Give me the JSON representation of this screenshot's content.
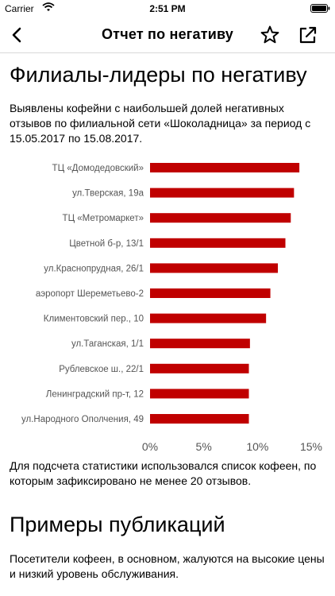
{
  "status_bar": {
    "carrier": "Carrier",
    "time": "2:51 PM"
  },
  "nav": {
    "title": "Отчет по негативу"
  },
  "section1": {
    "heading": "Филиалы-лидеры по негативу",
    "intro": "Выявлены кофейни с наибольшей долей негативных отзывов по филиальной сети «Шоколадница» за период с 15.05.2017 по 15.08.2017.",
    "footnote": "Для подсчета статистики использовался список кофеен, по которым зафиксировано не менее 20 отзывов."
  },
  "section2": {
    "heading": "Примеры публикаций",
    "text": "Посетители кофеен, в основном, жалуются на высокие цены и низкий уровень обслуживания."
  },
  "colors": {
    "bar": "#c00000",
    "text": "#000000",
    "axis_text": "#555555"
  },
  "chart_data": {
    "type": "bar",
    "orientation": "horizontal",
    "categories": [
      "ТЦ «Домодедовский»",
      "ул.Тверская, 19а",
      "ТЦ «Метромаркет»",
      "Цветной б-р, 13/1",
      "ул.Краснопрудная, 26/1",
      "аэропорт Шереметьево-2",
      "Климентовский пер., 10",
      "ул.Таганская, 1/1",
      "Рублевское ш., 22/1",
      "Ленинградский пр-т, 12",
      "ул.Народного Ополчения, 49"
    ],
    "values": [
      13.9,
      13.4,
      13.1,
      12.6,
      11.9,
      11.2,
      10.8,
      9.3,
      9.2,
      9.2,
      9.2
    ],
    "xlim": [
      0,
      15
    ],
    "xticks": [
      "0%",
      "5%",
      "10%",
      "15%"
    ],
    "xtick_values": [
      0,
      5,
      10,
      15
    ],
    "grid": false,
    "legend": "none"
  }
}
